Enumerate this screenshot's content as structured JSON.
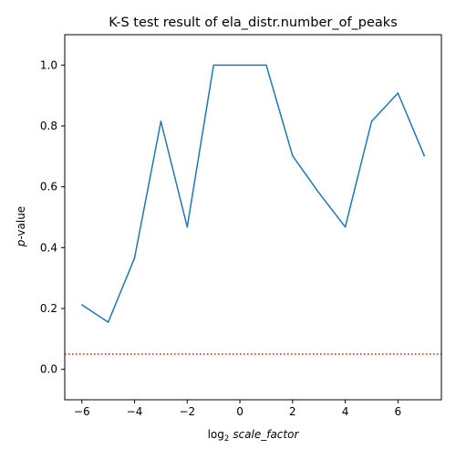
{
  "chart_data": {
    "type": "line",
    "title": "K-S test result of ela_distr.number_of_peaks",
    "xlabel": {
      "prefix": "log",
      "subscript": "2",
      "suffix": "scale_factor"
    },
    "ylabel": {
      "italic": "p",
      "suffix": "-value"
    },
    "xlim": [
      -6.65,
      7.65
    ],
    "ylim": [
      -0.1,
      1.1
    ],
    "xticks": [
      -6,
      -4,
      -2,
      0,
      2,
      4,
      6
    ],
    "xtick_labels": [
      "−6",
      "−4",
      "−2",
      "0",
      "2",
      "4",
      "6"
    ],
    "yticks": [
      0.0,
      0.2,
      0.4,
      0.6,
      0.8,
      1.0
    ],
    "ytick_labels": [
      "0.0",
      "0.2",
      "0.4",
      "0.6",
      "0.8",
      "1.0"
    ],
    "grid": false,
    "series": [
      {
        "color": "#1f77b4",
        "x": [
          -6,
          -5,
          -4,
          -3,
          -2,
          -1,
          0,
          1,
          2,
          3,
          4,
          5,
          6,
          7
        ],
        "y": [
          0.212,
          0.155,
          0.366,
          0.815,
          0.468,
          1.0,
          1.0,
          1.0,
          0.702,
          0.58,
          0.468,
          0.815,
          0.908,
          0.702
        ]
      }
    ],
    "reference_line": {
      "y": 0.05,
      "color": "#ff0000",
      "style": "dotted"
    }
  }
}
